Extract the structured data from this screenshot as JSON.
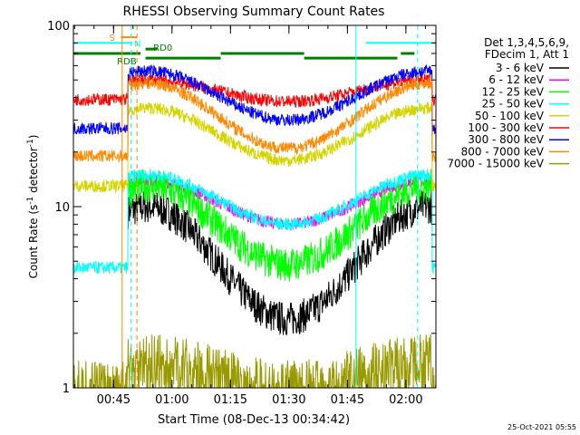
{
  "chart_data": {
    "type": "line",
    "title": "RHESSI Observing Summary Count Rates",
    "xlabel": "Start Time (08-Dec-13 00:34:42)",
    "ylabel_main": "Count Rate (s",
    "ylabel_sup": "-1",
    "ylabel_end": " detector",
    "ylabel_sup2": "-1",
    "ylabel_close": ")",
    "yscale": "log",
    "ylim": [
      1,
      100
    ],
    "xlim_minutes": [
      0,
      93
    ],
    "y_tick_labels": [
      "1",
      "10",
      "100"
    ],
    "x_ticks": [
      {
        "label": "00:45",
        "minutes": 10.3
      },
      {
        "label": "01:00",
        "minutes": 25.3
      },
      {
        "label": "01:15",
        "minutes": 40.3
      },
      {
        "label": "01:30",
        "minutes": 55.3
      },
      {
        "label": "01:45",
        "minutes": 70.3
      },
      {
        "label": "02:00",
        "minutes": 85.3
      }
    ],
    "legend_header": [
      "Det 1,3,4,5,6,9,",
      "FDecim 1, Att 1"
    ],
    "legend_placement": "right",
    "series": [
      {
        "name": "3 - 6 keV",
        "color": "#000000",
        "peak": 10,
        "trough": 2.4,
        "night": 0
      },
      {
        "name": "6 - 12 keV",
        "color": "#ff00ff",
        "peak": 14,
        "trough": 8,
        "night": 0
      },
      {
        "name": "12 - 25 keV",
        "color": "#00ff00",
        "peak": 13,
        "trough": 4.8,
        "night": 0
      },
      {
        "name": "25 - 50 keV",
        "color": "#00ffff",
        "peak": 15,
        "trough": 8,
        "night": 4.6
      },
      {
        "name": "50 - 100 keV",
        "color": "#d4d400",
        "peak": 35,
        "trough": 18,
        "night": 13
      },
      {
        "name": "100 - 300 keV",
        "color": "#ff0000",
        "peak": 50,
        "trough": 38,
        "night": 39
      },
      {
        "name": "300 - 800 keV",
        "color": "#0000ff",
        "peak": 56,
        "trough": 30,
        "night": 27
      },
      {
        "name": "800 - 7000 keV",
        "color": "#ff8800",
        "peak": 48,
        "trough": 21,
        "night": 19
      },
      {
        "name": "7000 - 15000 keV",
        "color": "#999900",
        "peak": 1.4,
        "trough": 1.0,
        "night": 1.0
      }
    ],
    "flags": [
      {
        "label": "S",
        "color": "#ff8800"
      },
      {
        "label": "N",
        "color": "#00ffff"
      },
      {
        "label": "RDB",
        "color": "#008000"
      },
      {
        "label": "RD0",
        "color": "#008000"
      }
    ],
    "timestamp": "25-Oct-2021 05:55"
  }
}
